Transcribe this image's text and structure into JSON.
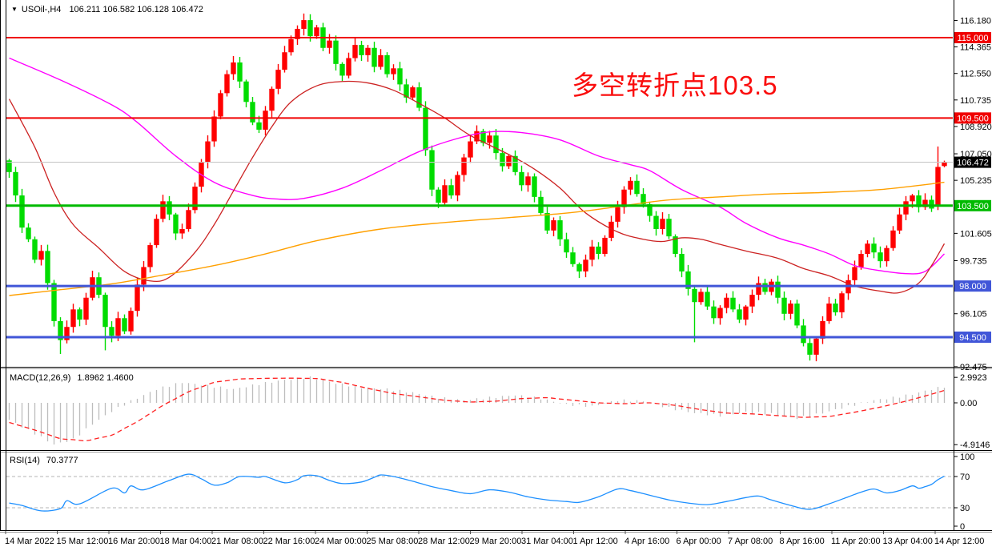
{
  "quote_bar": {
    "arrow": "▼",
    "symbol_period": "USOil-,H4",
    "ohlc": "106.211 106.582 106.128 106.472"
  },
  "annotation": {
    "text": "多空转折点103.5",
    "color": "#FA0D0D"
  },
  "colors": {
    "background": "#FFFFFF",
    "axis_text": "#000000",
    "up_candle": "#FF0000",
    "down_candle": "#00DC00",
    "current_price_line": "#C8C8C8",
    "current_price_badge_bg": "#000000",
    "badge_text": "#FFFFFF",
    "separator_dark": "#000000",
    "separator_light": "#9A9A9A"
  },
  "chart_data": [
    {
      "type": "candlestick",
      "title": "USOil- H4",
      "x_axis_labels": [
        "14 Mar 2022",
        "15 Mar 12:00",
        "16 Mar 20:00",
        "18 Mar 04:00",
        "21 Mar 08:00",
        "22 Mar 16:00",
        "24 Mar 00:00",
        "25 Mar 08:00",
        "28 Mar 12:00",
        "29 Mar 20:00",
        "31 Mar 04:00",
        "1 Apr 12:00",
        "4 Apr 16:00",
        "6 Apr 00:00",
        "7 Apr 08:00",
        "8 Apr 16:00",
        "11 Apr 20:00",
        "13 Apr 04:00",
        "14 Apr 12:00"
      ],
      "y_ticks": [
        116.18,
        114.365,
        112.55,
        110.735,
        108.92,
        107.05,
        105.235,
        101.605,
        99.735,
        96.105,
        92.475
      ],
      "y_axis_calibration": {
        "price_a": 115.0,
        "price_b": 94.5
      },
      "current_price": 106.472,
      "ohlc_current": {
        "open": 106.211,
        "high": 106.582,
        "low": 106.128,
        "close": 106.472
      },
      "horizontal_lines": [
        {
          "price": 115.0,
          "label": "115.000",
          "color": "#F00000",
          "width": 2
        },
        {
          "price": 109.5,
          "label": "109.500",
          "color": "#F00000",
          "width": 2
        },
        {
          "price": 103.5,
          "label": "103.500",
          "color": "#00BA00",
          "width": 3
        },
        {
          "price": 98.0,
          "label": "98.000",
          "color": "#4156D8",
          "width": 3
        },
        {
          "price": 94.5,
          "label": "94.500",
          "color": "#4156D8",
          "width": 3
        }
      ],
      "current_price_label": "106.472",
      "first_open": 106.6,
      "closes": [
        105.8,
        104.2,
        102.0,
        101.2,
        99.8,
        100.4,
        98.2,
        95.6,
        94.3,
        95.2,
        96.4,
        95.7,
        97.2,
        98.6,
        97.4,
        95.2,
        94.6,
        95.8,
        94.9,
        96.3,
        98.1,
        99.3,
        100.8,
        102.6,
        103.8,
        102.9,
        101.6,
        101.9,
        103.2,
        104.8,
        106.5,
        107.9,
        109.6,
        111.2,
        112.5,
        113.3,
        112.0,
        110.6,
        109.2,
        108.7,
        110.0,
        111.5,
        112.8,
        114.0,
        114.9,
        115.6,
        116.2,
        115.1,
        115.7,
        114.3,
        114.8,
        113.2,
        112.4,
        113.6,
        114.5,
        113.8,
        114.3,
        113.0,
        113.8,
        112.5,
        112.9,
        111.8,
        110.9,
        111.6,
        110.2,
        107.3,
        104.6,
        103.7,
        104.9,
        104.2,
        105.6,
        106.8,
        107.9,
        108.6,
        107.8,
        108.3,
        107.1,
        106.2,
        106.9,
        105.8,
        104.9,
        105.5,
        104.1,
        103.0,
        101.8,
        102.5,
        101.2,
        100.3,
        99.5,
        99.0,
        99.8,
        100.7,
        100.2,
        101.3,
        102.4,
        103.4,
        104.6,
        105.2,
        104.3,
        103.6,
        102.8,
        101.9,
        102.6,
        101.4,
        100.2,
        99.0,
        97.8,
        96.9,
        97.6,
        96.6,
        95.8,
        96.5,
        97.2,
        96.4,
        95.7,
        96.6,
        97.4,
        98.2,
        97.6,
        98.3,
        97.2,
        96.1,
        96.8,
        95.3,
        94.1,
        93.3,
        94.4,
        95.6,
        96.8,
        96.2,
        97.5,
        98.4,
        99.3,
        100.2,
        100.9,
        100.3,
        99.7,
        100.6,
        101.8,
        102.9,
        103.8,
        104.2,
        103.4,
        103.9,
        103.3,
        106.15,
        106.472
      ],
      "wick_overrides": {
        "8": {
          "low": 93.35
        },
        "15": {
          "low": 93.6
        },
        "46": {
          "high": 116.65
        },
        "89": {
          "low": 98.55
        },
        "107": {
          "low": 94.15
        },
        "125": {
          "low": 92.9
        }
      },
      "last_two_candles": [
        {
          "open": 103.45,
          "high": 107.55,
          "low": 103.2,
          "close": 106.15
        },
        {
          "open": 106.211,
          "high": 106.582,
          "low": 106.128,
          "close": 106.472
        }
      ],
      "moving_averages": [
        {
          "name": "ma-magenta",
          "color": "#FF00FF",
          "width": 1.4,
          "points": [
            [
              0,
              113.6
            ],
            [
              8,
              112.1
            ],
            [
              16,
              110.4
            ],
            [
              20,
              109.2
            ],
            [
              26,
              106.9
            ],
            [
              32,
              105.1
            ],
            [
              38,
              104.2
            ],
            [
              42,
              103.95
            ],
            [
              46,
              104.0
            ],
            [
              52,
              104.7
            ],
            [
              58,
              105.9
            ],
            [
              64,
              107.2
            ],
            [
              70,
              108.1
            ],
            [
              75,
              108.55
            ],
            [
              80,
              108.5
            ],
            [
              86,
              108.0
            ],
            [
              92,
              106.9
            ],
            [
              97,
              106.3
            ],
            [
              100,
              105.9
            ],
            [
              105,
              104.6
            ],
            [
              111,
              103.4
            ],
            [
              115,
              102.3
            ],
            [
              120,
              101.3
            ],
            [
              124,
              100.8
            ],
            [
              128,
              100.2
            ],
            [
              132,
              99.4
            ],
            [
              136,
              99.05
            ],
            [
              140,
              98.85
            ],
            [
              143,
              99.0
            ],
            [
              146,
              100.2
            ]
          ]
        },
        {
          "name": "ma-red",
          "color": "#CC2222",
          "width": 1.3,
          "points": [
            [
              0,
              110.8
            ],
            [
              4,
              107.5
            ],
            [
              7,
              104.4
            ],
            [
              10,
              102.2
            ],
            [
              14,
              100.6
            ],
            [
              18,
              99.0
            ],
            [
              22,
              98.35
            ],
            [
              25,
              98.6
            ],
            [
              29,
              100.3
            ],
            [
              32,
              102.2
            ],
            [
              35,
              104.5
            ],
            [
              38,
              106.8
            ],
            [
              41,
              108.9
            ],
            [
              44,
              110.6
            ],
            [
              48,
              111.7
            ],
            [
              52,
              112.0
            ],
            [
              56,
              111.9
            ],
            [
              60,
              111.4
            ],
            [
              64,
              110.5
            ],
            [
              68,
              109.5
            ],
            [
              72,
              108.3
            ],
            [
              78,
              107.0
            ],
            [
              82,
              106.0
            ],
            [
              86,
              104.7
            ],
            [
              90,
              103.0
            ],
            [
              95,
              101.7
            ],
            [
              99,
              101.2
            ],
            [
              102,
              101.05
            ],
            [
              105,
              101.3
            ],
            [
              108,
              101.2
            ],
            [
              111,
              100.85
            ],
            [
              115,
              100.4
            ],
            [
              120,
              99.9
            ],
            [
              124,
              99.2
            ],
            [
              128,
              98.7
            ],
            [
              132,
              98.0
            ],
            [
              136,
              97.65
            ],
            [
              139,
              97.55
            ],
            [
              142,
              98.2
            ],
            [
              144,
              99.4
            ],
            [
              146,
              100.9
            ]
          ]
        },
        {
          "name": "ma-orange",
          "color": "#FFA000",
          "width": 1.4,
          "points": [
            [
              0,
              97.35
            ],
            [
              8,
              97.75
            ],
            [
              16,
              98.15
            ],
            [
              24,
              98.75
            ],
            [
              32,
              99.4
            ],
            [
              40,
              100.2
            ],
            [
              48,
              101.1
            ],
            [
              58,
              101.9
            ],
            [
              68,
              102.35
            ],
            [
              77,
              102.65
            ],
            [
              86,
              102.95
            ],
            [
              92,
              103.25
            ],
            [
              102,
              103.85
            ],
            [
              111,
              104.1
            ],
            [
              119,
              104.3
            ],
            [
              127,
              104.4
            ],
            [
              136,
              104.6
            ],
            [
              146,
              105.1
            ]
          ]
        }
      ]
    },
    {
      "type": "macd-histogram",
      "label": "MACD(12,26,9)",
      "values_label": "1.8962 1.4600",
      "macd_value": 1.8962,
      "signal_value": 1.46,
      "y_ticks": [
        2.9923,
        0.0,
        -4.9146
      ],
      "histogram_color": "#BDBDBD",
      "signal_color": "#FF2020",
      "histogram_anchors": [
        [
          0,
          -2.0
        ],
        [
          4,
          -3.6
        ],
        [
          7,
          -4.9
        ],
        [
          10,
          -4.3
        ],
        [
          13,
          -2.5
        ],
        [
          16,
          -1.0
        ],
        [
          19,
          0.2
        ],
        [
          23,
          1.6
        ],
        [
          27,
          2.4
        ],
        [
          31,
          2.0
        ],
        [
          35,
          1.6
        ],
        [
          39,
          2.2
        ],
        [
          43,
          2.7
        ],
        [
          47,
          2.99
        ],
        [
          51,
          2.3
        ],
        [
          55,
          1.8
        ],
        [
          59,
          1.6
        ],
        [
          63,
          1.2
        ],
        [
          67,
          0.6
        ],
        [
          71,
          0.3
        ],
        [
          75,
          0.6
        ],
        [
          79,
          0.9
        ],
        [
          83,
          0.5
        ],
        [
          87,
          -0.2
        ],
        [
          91,
          -0.4
        ],
        [
          95,
          0.3
        ],
        [
          99,
          0.2
        ],
        [
          103,
          -0.6
        ],
        [
          107,
          -1.2
        ],
        [
          111,
          -1.5
        ],
        [
          115,
          -1.1
        ],
        [
          119,
          -1.3
        ],
        [
          123,
          -1.8
        ],
        [
          127,
          -1.2
        ],
        [
          131,
          -0.4
        ],
        [
          135,
          0.3
        ],
        [
          138,
          0.6
        ],
        [
          141,
          1.0
        ],
        [
          144,
          1.6
        ],
        [
          146,
          1.9
        ]
      ],
      "signal_anchors": [
        [
          0,
          -2.3
        ],
        [
          4,
          -3.2
        ],
        [
          8,
          -4.2
        ],
        [
          12,
          -4.45
        ],
        [
          16,
          -3.8
        ],
        [
          20,
          -2.2
        ],
        [
          24,
          -0.3
        ],
        [
          28,
          1.3
        ],
        [
          32,
          2.4
        ],
        [
          36,
          2.8
        ],
        [
          40,
          2.88
        ],
        [
          44,
          2.9
        ],
        [
          48,
          2.85
        ],
        [
          52,
          2.4
        ],
        [
          56,
          1.7
        ],
        [
          60,
          1.1
        ],
        [
          64,
          0.7
        ],
        [
          68,
          0.3
        ],
        [
          72,
          0.1
        ],
        [
          76,
          0.2
        ],
        [
          80,
          0.5
        ],
        [
          84,
          0.6
        ],
        [
          88,
          0.3
        ],
        [
          92,
          0.0
        ],
        [
          96,
          -0.1
        ],
        [
          100,
          0.0
        ],
        [
          104,
          -0.3
        ],
        [
          108,
          -0.8
        ],
        [
          112,
          -1.2
        ],
        [
          116,
          -1.3
        ],
        [
          120,
          -1.5
        ],
        [
          124,
          -1.7
        ],
        [
          128,
          -1.6
        ],
        [
          132,
          -1.1
        ],
        [
          136,
          -0.5
        ],
        [
          140,
          0.2
        ],
        [
          143,
          0.8
        ],
        [
          146,
          1.46
        ]
      ]
    },
    {
      "type": "rsi-line",
      "label": "RSI(14)",
      "value_label": "70.3777",
      "rsi_value": 70.3777,
      "y_ticks": [
        100,
        70,
        30,
        0
      ],
      "levels": [
        70,
        30
      ],
      "line_color": "#1E90FF",
      "level_color": "#B4B4B4",
      "line_anchors": [
        [
          0,
          36
        ],
        [
          2,
          33
        ],
        [
          5,
          26
        ],
        [
          8,
          29
        ],
        [
          9,
          39
        ],
        [
          11,
          35
        ],
        [
          16,
          55
        ],
        [
          18,
          49
        ],
        [
          19,
          58
        ],
        [
          21,
          53
        ],
        [
          25,
          65
        ],
        [
          28,
          73
        ],
        [
          30,
          67
        ],
        [
          32,
          59
        ],
        [
          34,
          62
        ],
        [
          36,
          70
        ],
        [
          39,
          69
        ],
        [
          40,
          70
        ],
        [
          43,
          62
        ],
        [
          45,
          66
        ],
        [
          46,
          71
        ],
        [
          48,
          71
        ],
        [
          50,
          65
        ],
        [
          52,
          61
        ],
        [
          55,
          63
        ],
        [
          57,
          69
        ],
        [
          58,
          72
        ],
        [
          60,
          70
        ],
        [
          63,
          64
        ],
        [
          66,
          57
        ],
        [
          69,
          52
        ],
        [
          72,
          48
        ],
        [
          75,
          53
        ],
        [
          78,
          50
        ],
        [
          81,
          44
        ],
        [
          84,
          40
        ],
        [
          87,
          38
        ],
        [
          89,
          37
        ],
        [
          92,
          44
        ],
        [
          95,
          54
        ],
        [
          97,
          52
        ],
        [
          100,
          46
        ],
        [
          103,
          40
        ],
        [
          106,
          36
        ],
        [
          109,
          34
        ],
        [
          112,
          38
        ],
        [
          115,
          43
        ],
        [
          117,
          45
        ],
        [
          119,
          40
        ],
        [
          122,
          33
        ],
        [
          125,
          28
        ],
        [
          128,
          35
        ],
        [
          131,
          44
        ],
        [
          133,
          50
        ],
        [
          135,
          54
        ],
        [
          137,
          49
        ],
        [
          139,
          52
        ],
        [
          141,
          58
        ],
        [
          142,
          55
        ],
        [
          143,
          57
        ],
        [
          144,
          60
        ],
        [
          145,
          66
        ],
        [
          146,
          70.4
        ]
      ]
    }
  ]
}
